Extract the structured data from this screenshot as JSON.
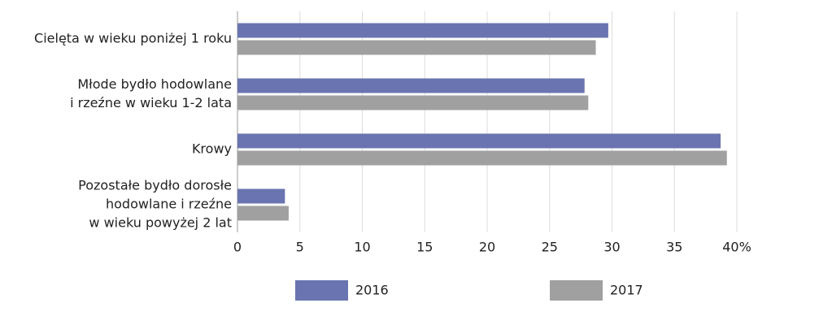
{
  "chart_data": {
    "type": "bar",
    "orientation": "horizontal",
    "categories": [
      [
        "Cielęta w wieku poniżej 1 roku"
      ],
      [
        "Młode bydło hodowlane",
        "i rzeźne w wieku 1-2 lata"
      ],
      [
        "Krowy"
      ],
      [
        "Pozostałe bydło dorosłe",
        "hodowlane i rzeźne",
        "w wieku powyżej 2 lat"
      ]
    ],
    "series": [
      {
        "name": "2016",
        "color": "#6a74b0",
        "values": [
          29.7,
          27.8,
          38.7,
          3.8
        ]
      },
      {
        "name": "2017",
        "color": "#a0a0a0",
        "values": [
          28.7,
          28.1,
          39.2,
          4.1
        ]
      }
    ],
    "xlim": [
      0,
      40
    ],
    "xticks": [
      0,
      5,
      10,
      15,
      20,
      25,
      30,
      35,
      {
        "value": 40,
        "label": "40%"
      }
    ],
    "grid": true,
    "legend": "bottom"
  }
}
